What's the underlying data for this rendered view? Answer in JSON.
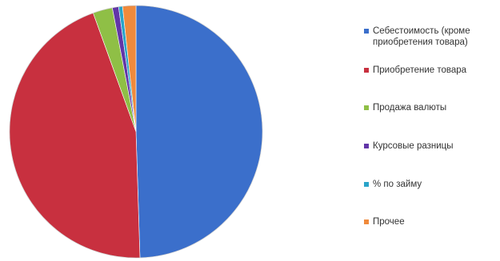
{
  "chart_data": {
    "type": "pie",
    "title": "",
    "legend_position": "right",
    "series": [
      {
        "name": "Себестоимость (кроме приобретения товара)",
        "value": 49.5,
        "color": "#3b6fcb"
      },
      {
        "name": "Приобретение товара",
        "value": 45.0,
        "color": "#c8303f"
      },
      {
        "name": "Продажа валюты",
        "value": 2.5,
        "color": "#8fbf46"
      },
      {
        "name": "Курсовые разницы",
        "value": 0.8,
        "color": "#6236a8"
      },
      {
        "name": "% по займу",
        "value": 0.5,
        "color": "#2aa4c9"
      },
      {
        "name": "Прочее",
        "value": 1.7,
        "color": "#f08a3c"
      }
    ]
  }
}
